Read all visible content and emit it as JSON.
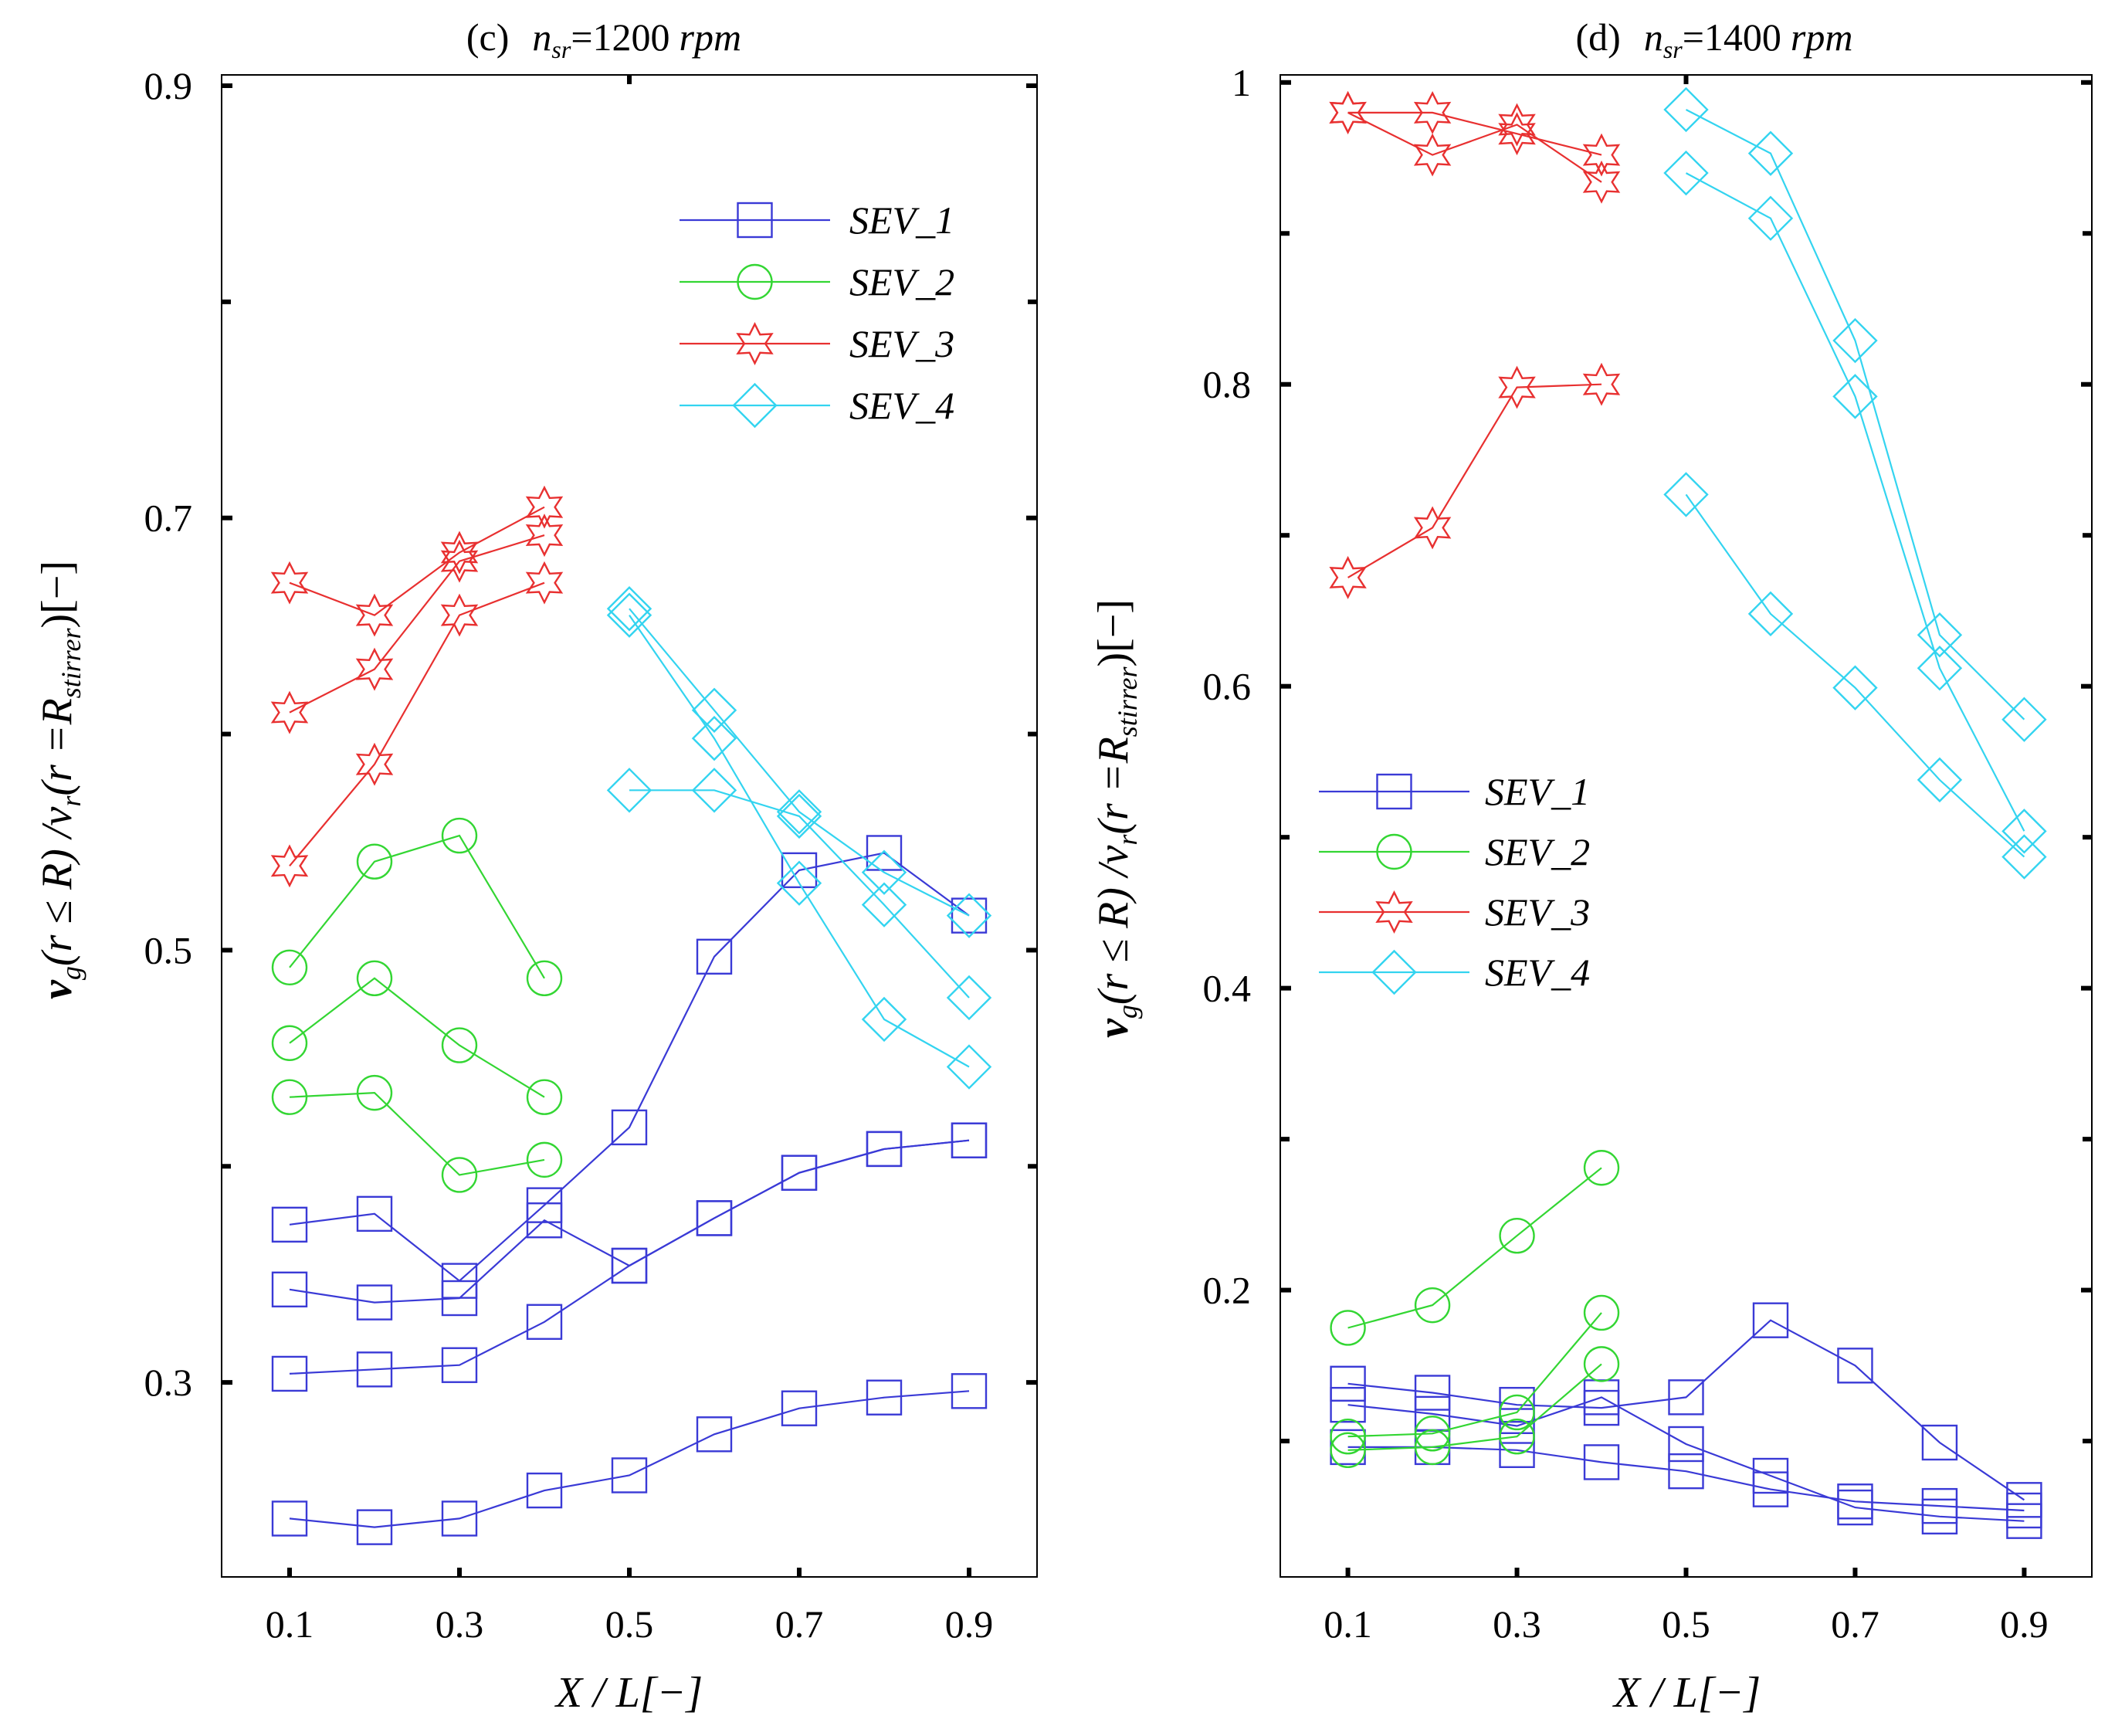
{
  "chart_data": [
    {
      "type": "line",
      "panel": "(c)",
      "title_prefix": "(c)",
      "title_n": "n",
      "title_sub": "sr",
      "title_value": "=1200",
      "title_unit": "rpm",
      "xlabel": "X / L[−]",
      "ylabel": "v_g(r ≤ R) /v_r(r =R_stirrer)[−]",
      "xlim": [
        0.02,
        0.98
      ],
      "ylim": [
        0.21,
        0.905
      ],
      "xticks": [
        0.1,
        0.3,
        0.5,
        0.7,
        0.9
      ],
      "xticklabels": [
        "0.1",
        "0.3",
        "0.5",
        "0.7",
        "0.9"
      ],
      "yticks": [
        0.3,
        0.5,
        0.7,
        0.9
      ],
      "yticklabels": [
        "0.3",
        "0.5",
        "0.7",
        "0.9"
      ],
      "minor_yticks": [
        0.4,
        0.6,
        0.8
      ],
      "legend_position": "top-right",
      "series": [
        {
          "name": "SEV_1",
          "color": "#3a3ad6",
          "marker": "square",
          "x": [
            0.1,
            0.2,
            0.3,
            0.4,
            0.5,
            0.6,
            0.7,
            0.8,
            0.9
          ],
          "y": [
            0.373,
            0.378,
            0.347,
            0.382,
            0.418,
            0.497,
            0.537,
            0.545,
            0.516
          ]
        },
        {
          "name": "SEV_1",
          "color": "#3a3ad6",
          "marker": "square",
          "x": [
            0.1,
            0.2,
            0.3,
            0.4,
            0.5,
            0.6,
            0.7,
            0.8,
            0.9
          ],
          "y": [
            0.343,
            0.337,
            0.339,
            0.375,
            0.354,
            0.376,
            0.397,
            0.408,
            0.412
          ]
        },
        {
          "name": "SEV_1",
          "color": "#3a3ad6",
          "marker": "square",
          "x": [
            0.1,
            0.2,
            0.3,
            0.4,
            0.5,
            0.6,
            0.7,
            0.8,
            0.9
          ],
          "y": [
            0.304,
            0.306,
            0.308,
            0.328,
            0.354,
            0.376,
            0.397,
            0.408,
            0.412
          ]
        },
        {
          "name": "SEV_1",
          "color": "#3a3ad6",
          "marker": "square",
          "x": [
            0.1,
            0.2,
            0.3,
            0.4,
            0.5,
            0.6,
            0.7,
            0.8,
            0.9
          ],
          "y": [
            0.237,
            0.233,
            0.237,
            0.25,
            0.257,
            0.276,
            0.288,
            0.293,
            0.296
          ]
        },
        {
          "name": "SEV_2",
          "color": "#33d633",
          "marker": "circle",
          "x": [
            0.1,
            0.2,
            0.3,
            0.4
          ],
          "y": [
            0.492,
            0.541,
            0.553,
            0.487
          ]
        },
        {
          "name": "SEV_2",
          "color": "#33d633",
          "marker": "circle",
          "x": [
            0.1,
            0.2,
            0.3,
            0.4
          ],
          "y": [
            0.457,
            0.487,
            0.456,
            0.432
          ]
        },
        {
          "name": "SEV_2",
          "color": "#33d633",
          "marker": "circle",
          "x": [
            0.1,
            0.2,
            0.3,
            0.4
          ],
          "y": [
            0.432,
            0.434,
            0.396,
            0.403
          ]
        },
        {
          "name": "SEV_3",
          "color": "#e83030",
          "marker": "star",
          "x": [
            0.1,
            0.2,
            0.3,
            0.4
          ],
          "y": [
            0.67,
            0.655,
            0.684,
            0.705
          ]
        },
        {
          "name": "SEV_3",
          "color": "#e83030",
          "marker": "star",
          "x": [
            0.1,
            0.2,
            0.3,
            0.4
          ],
          "y": [
            0.61,
            0.63,
            0.68,
            0.692
          ]
        },
        {
          "name": "SEV_3",
          "color": "#e83030",
          "marker": "star",
          "x": [
            0.1,
            0.2,
            0.3,
            0.4
          ],
          "y": [
            0.539,
            0.586,
            0.655,
            0.67
          ]
        },
        {
          "name": "SEV_4",
          "color": "#33d4f0",
          "marker": "diamond",
          "x": [
            0.5,
            0.6,
            0.7,
            0.8,
            0.9
          ],
          "y": [
            0.658,
            0.611,
            0.564,
            0.536,
            0.516
          ]
        },
        {
          "name": "SEV_4",
          "color": "#33d4f0",
          "marker": "diamond",
          "x": [
            0.5,
            0.6,
            0.7,
            0.8,
            0.9
          ],
          "y": [
            0.655,
            0.598,
            0.531,
            0.468,
            0.446
          ]
        },
        {
          "name": "SEV_4",
          "color": "#33d4f0",
          "marker": "diamond",
          "x": [
            0.5,
            0.6,
            0.7,
            0.8,
            0.9
          ],
          "y": [
            0.574,
            0.574,
            0.562,
            0.521,
            0.478
          ]
        }
      ]
    },
    {
      "type": "line",
      "panel": "(d)",
      "title_prefix": "(d)",
      "title_n": "n",
      "title_sub": "sr",
      "title_value": "=1400",
      "title_unit": "rpm",
      "xlabel": "X / L[−]",
      "ylabel": "v_g(r ≤ R) /v_r(r =R_stirrer)[−]",
      "xlim": [
        0.02,
        0.98
      ],
      "ylim": [
        0.01,
        1.005
      ],
      "xticks": [
        0.1,
        0.3,
        0.5,
        0.7,
        0.9
      ],
      "xticklabels": [
        "0.1",
        "0.3",
        "0.5",
        "0.7",
        "0.9"
      ],
      "yticks": [
        0.2,
        0.4,
        0.6,
        0.8,
        1.0
      ],
      "yticklabels": [
        "0.2",
        "0.4",
        "0.6",
        "0.8",
        "1"
      ],
      "minor_yticks": [
        0.1,
        0.3,
        0.5,
        0.7,
        0.9
      ],
      "legend_position": "center-left",
      "series": [
        {
          "name": "SEV_1",
          "color": "#3a3ad6",
          "marker": "square",
          "x": [
            0.1,
            0.2,
            0.3,
            0.4,
            0.5,
            0.6,
            0.7,
            0.8,
            0.9
          ],
          "y": [
            0.138,
            0.132,
            0.124,
            0.122,
            0.129,
            0.18,
            0.15,
            0.099,
            0.061
          ]
        },
        {
          "name": "SEV_1",
          "color": "#3a3ad6",
          "marker": "square",
          "x": [
            0.1,
            0.2,
            0.3,
            0.4,
            0.5,
            0.6,
            0.7,
            0.8,
            0.9
          ],
          "y": [
            0.124,
            0.118,
            0.11,
            0.129,
            0.098,
            0.077,
            0.056,
            0.05,
            0.047
          ]
        },
        {
          "name": "SEV_1",
          "color": "#3a3ad6",
          "marker": "square",
          "x": [
            0.1,
            0.2,
            0.3,
            0.4,
            0.5,
            0.6,
            0.7,
            0.8,
            0.9
          ],
          "y": [
            0.096,
            0.096,
            0.094,
            0.086,
            0.08,
            0.068,
            0.06,
            0.057,
            0.054
          ]
        },
        {
          "name": "SEV_2",
          "color": "#33d633",
          "marker": "circle",
          "x": [
            0.1,
            0.2,
            0.3,
            0.4
          ],
          "y": [
            0.175,
            0.19,
            0.236,
            0.281
          ]
        },
        {
          "name": "SEV_2",
          "color": "#33d633",
          "marker": "circle",
          "x": [
            0.1,
            0.2,
            0.3,
            0.4
          ],
          "y": [
            0.103,
            0.105,
            0.119,
            0.185
          ]
        },
        {
          "name": "SEV_2",
          "color": "#33d633",
          "marker": "circle",
          "x": [
            0.1,
            0.2,
            0.3,
            0.4
          ],
          "y": [
            0.094,
            0.096,
            0.103,
            0.151
          ]
        },
        {
          "name": "SEV_3",
          "color": "#e83030",
          "marker": "star",
          "x": [
            0.1,
            0.2,
            0.3,
            0.4
          ],
          "y": [
            0.98,
            0.98,
            0.966,
            0.952
          ]
        },
        {
          "name": "SEV_3",
          "color": "#e83030",
          "marker": "star",
          "x": [
            0.1,
            0.2,
            0.3,
            0.4
          ],
          "y": [
            0.98,
            0.952,
            0.972,
            0.934
          ]
        },
        {
          "name": "SEV_3",
          "color": "#e83030",
          "marker": "star",
          "x": [
            0.1,
            0.2,
            0.3,
            0.4
          ],
          "y": [
            0.672,
            0.705,
            0.798,
            0.8
          ]
        },
        {
          "name": "SEV_4",
          "color": "#33d4f0",
          "marker": "diamond",
          "x": [
            0.5,
            0.6,
            0.7,
            0.8,
            0.9
          ],
          "y": [
            0.982,
            0.953,
            0.829,
            0.634,
            0.578
          ]
        },
        {
          "name": "SEV_4",
          "color": "#33d4f0",
          "marker": "diamond",
          "x": [
            0.5,
            0.6,
            0.7,
            0.8,
            0.9
          ],
          "y": [
            0.94,
            0.91,
            0.792,
            0.612,
            0.504
          ]
        },
        {
          "name": "SEV_4",
          "color": "#33d4f0",
          "marker": "diamond",
          "x": [
            0.5,
            0.6,
            0.7,
            0.8,
            0.9
          ],
          "y": [
            0.727,
            0.648,
            0.599,
            0.538,
            0.487
          ]
        }
      ]
    }
  ],
  "legend": {
    "items": [
      {
        "label": "SEV_1",
        "color": "#3a3ad6",
        "marker": "square"
      },
      {
        "label": "SEV_2",
        "color": "#33d633",
        "marker": "circle"
      },
      {
        "label": "SEV_3",
        "color": "#e83030",
        "marker": "star"
      },
      {
        "label": "SEV_4",
        "color": "#33d4f0",
        "marker": "diamond"
      }
    ]
  },
  "ylabel_parts": {
    "v": "v",
    "g": "g",
    "lhs": "(r ≤ R) /v",
    "r_sub": "r",
    "rhs": "(r =R",
    "stirrer": "stirrer",
    "tail": ")[−]"
  }
}
